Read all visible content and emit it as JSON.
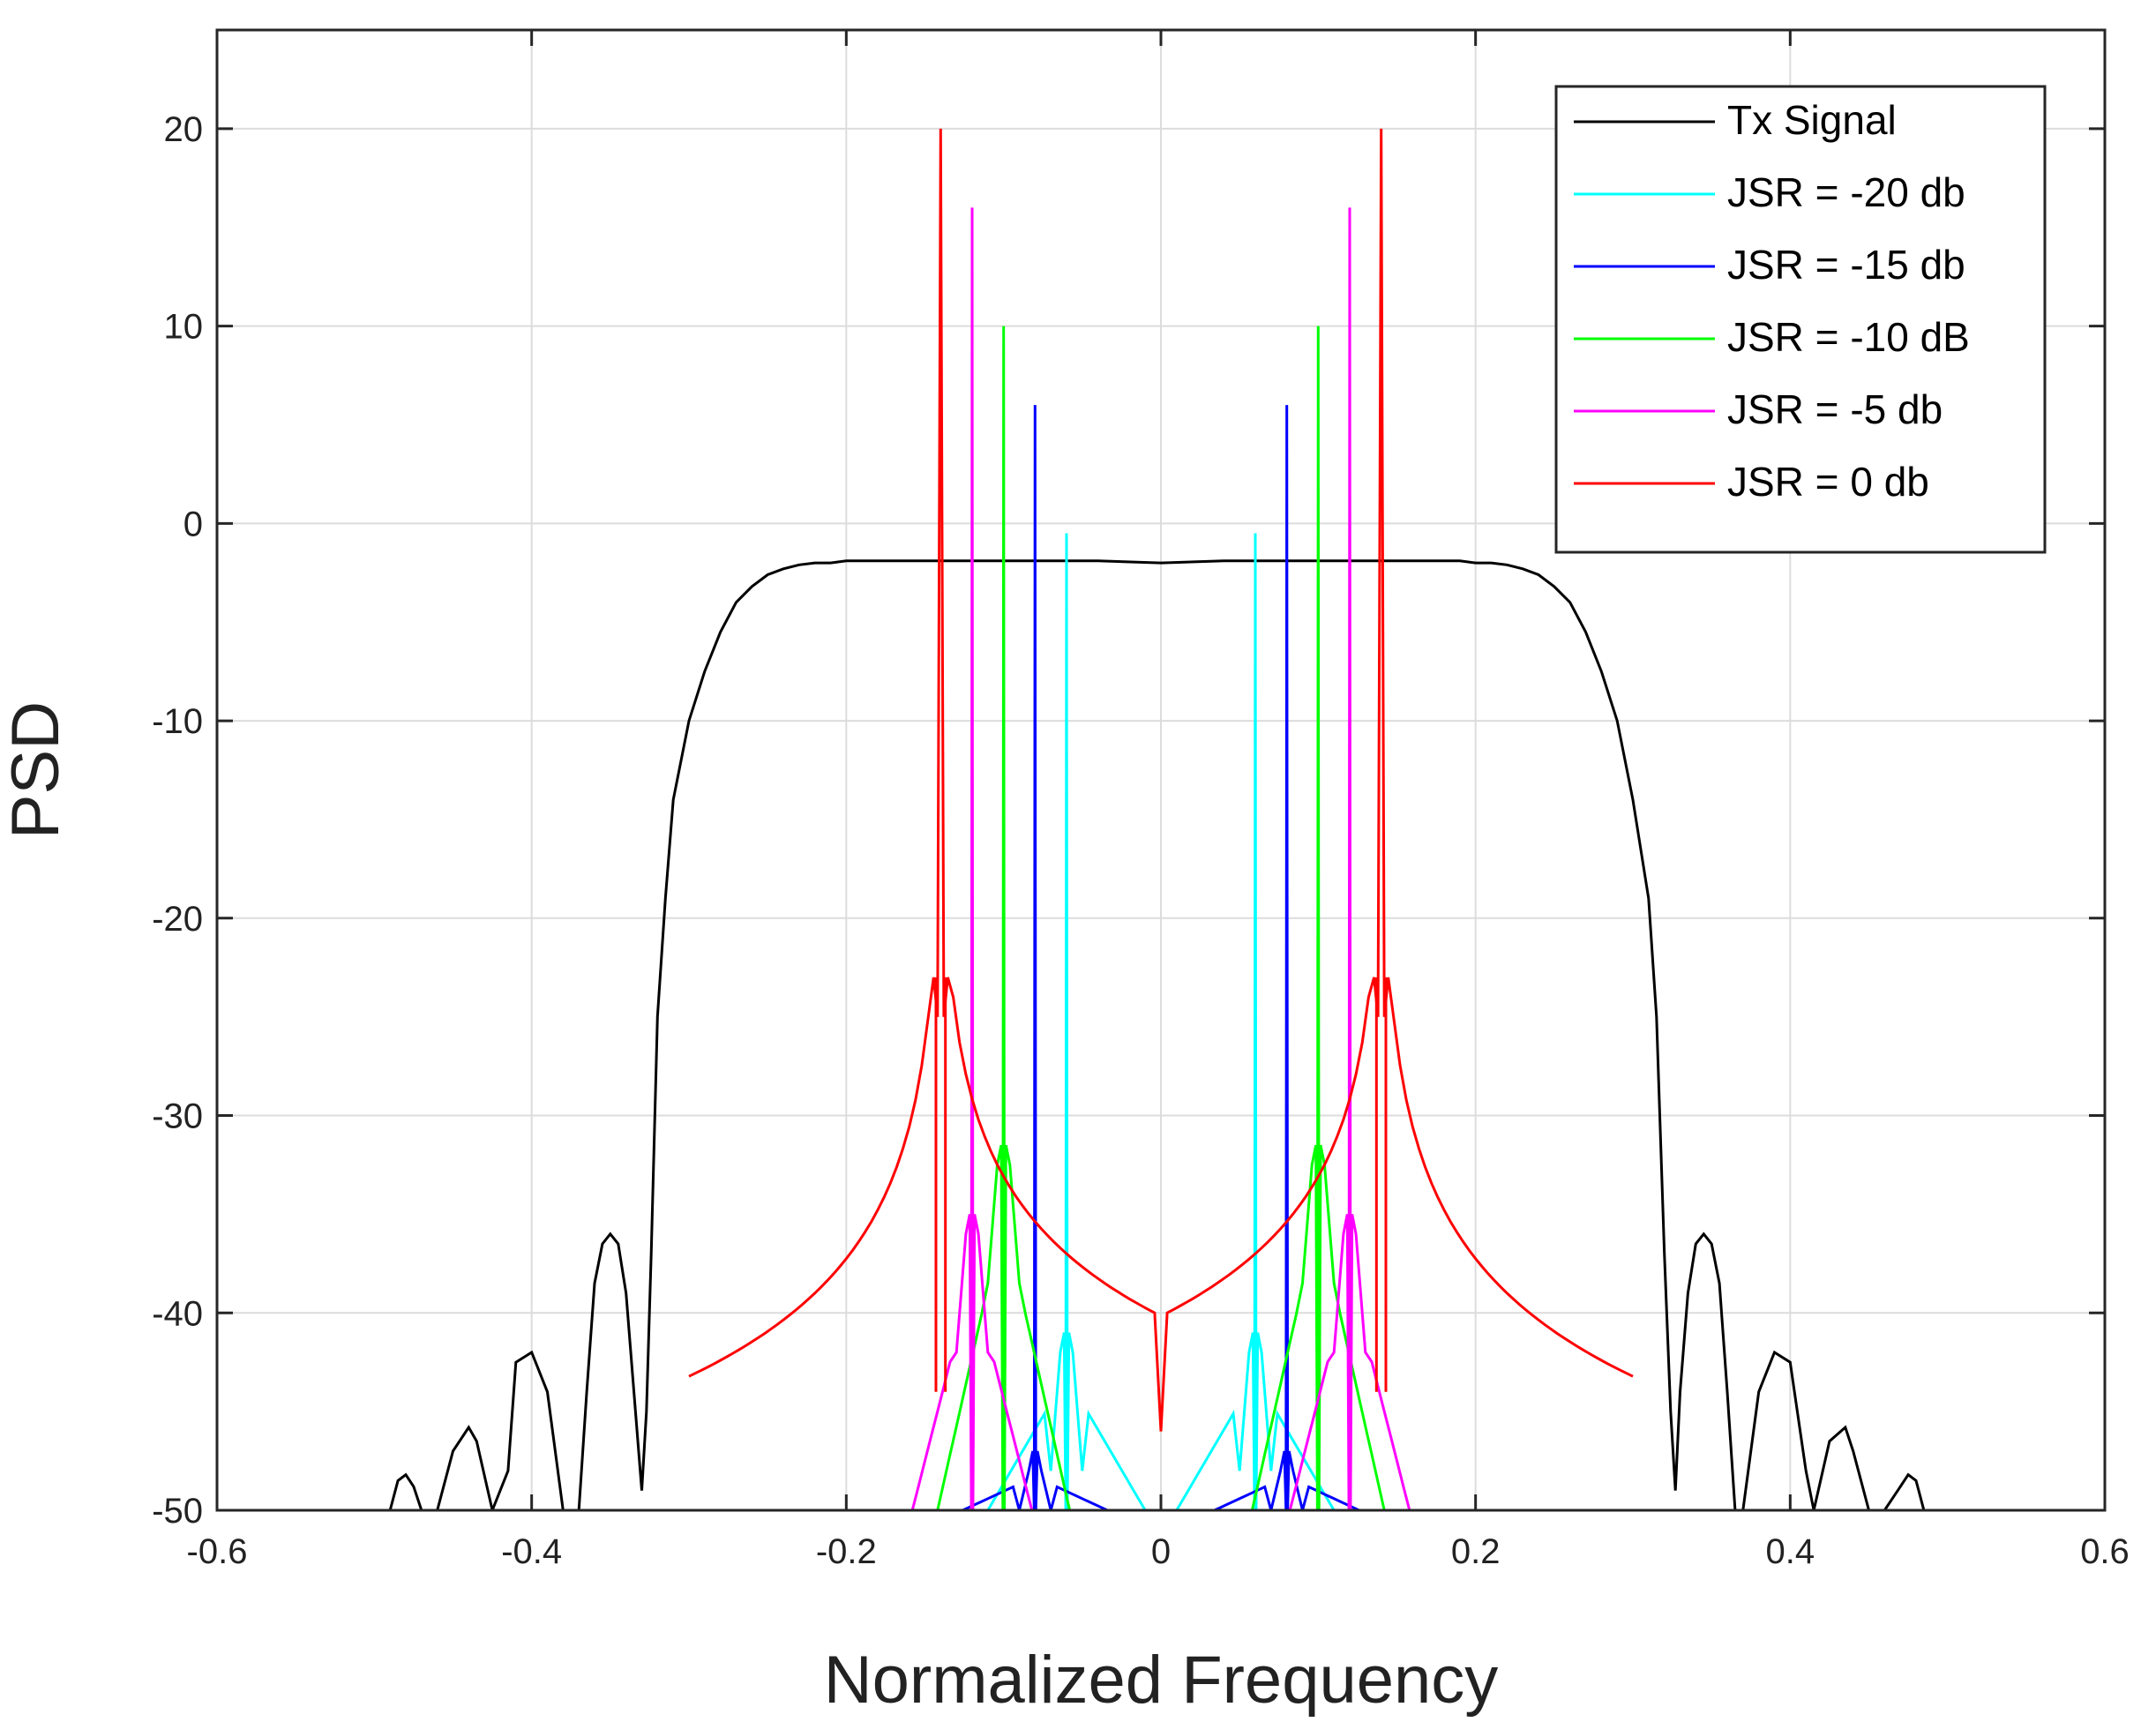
{
  "chart_data": {
    "type": "line",
    "title": "",
    "xlabel": "Normalized Frequency",
    "ylabel": "PSD",
    "xlim": [
      -0.6,
      0.6
    ],
    "ylim": [
      -50,
      25
    ],
    "xticks": [
      -0.6,
      -0.4,
      -0.2,
      0,
      0.2,
      0.4,
      0.6
    ],
    "xtick_labels": [
      "-0.6",
      "-0.4",
      "-0.2",
      "0",
      "0.2",
      "0.4",
      "0.6"
    ],
    "yticks": [
      -50,
      -40,
      -30,
      -20,
      -10,
      0,
      10,
      20
    ],
    "ytick_labels": [
      "-50",
      "-40",
      "-30",
      "-20",
      "-10",
      "0",
      "10",
      "20"
    ],
    "grid": true,
    "legend_position": "top-right",
    "series": [
      {
        "name": "Tx Signal",
        "color": "#000000",
        "x": [
          -0.49,
          -0.485,
          -0.48,
          -0.475,
          -0.47,
          -0.46,
          -0.45,
          -0.44,
          -0.435,
          -0.425,
          -0.415,
          -0.41,
          -0.4,
          -0.39,
          -0.38,
          -0.37,
          -0.365,
          -0.36,
          -0.355,
          -0.35,
          -0.345,
          -0.34,
          -0.335,
          -0.33,
          -0.327,
          -0.324,
          -0.32,
          -0.315,
          -0.31,
          -0.3,
          -0.29,
          -0.28,
          -0.27,
          -0.26,
          -0.25,
          -0.24,
          -0.23,
          -0.22,
          -0.21,
          -0.2,
          -0.19,
          -0.16,
          -0.12,
          -0.08,
          -0.04,
          0,
          0.04,
          0.08,
          0.12,
          0.16,
          0.19,
          0.2,
          0.21,
          0.22,
          0.23,
          0.24,
          0.25,
          0.26,
          0.27,
          0.28,
          0.29,
          0.3,
          0.31,
          0.315,
          0.32,
          0.324,
          0.327,
          0.33,
          0.335,
          0.34,
          0.345,
          0.35,
          0.355,
          0.36,
          0.365,
          0.37,
          0.38,
          0.39,
          0.4,
          0.41,
          0.415,
          0.425,
          0.435,
          0.44,
          0.45,
          0.46,
          0.47,
          0.475,
          0.48,
          0.485,
          0.49
        ],
        "y": [
          -50,
          -48.5,
          -48.2,
          -48.8,
          -50,
          -50,
          -47,
          -45.8,
          -46.5,
          -50,
          -48,
          -42.5,
          -42,
          -44,
          -50,
          -50,
          -44,
          -38.5,
          -36.5,
          -36,
          -36.5,
          -39,
          -44,
          -49,
          -45,
          -37,
          -25,
          -19,
          -14,
          -10,
          -7.5,
          -5.5,
          -4,
          -3.2,
          -2.6,
          -2.3,
          -2.1,
          -2.0,
          -2.0,
          -1.9,
          -1.9,
          -1.9,
          -1.9,
          -1.9,
          -1.9,
          -2.0,
          -1.9,
          -1.9,
          -1.9,
          -1.9,
          -1.9,
          -2.0,
          -2.0,
          -2.1,
          -2.3,
          -2.6,
          -3.2,
          -4,
          -5.5,
          -7.5,
          -10,
          -14,
          -19,
          -25,
          -37,
          -45,
          -49,
          -44,
          -39,
          -36.5,
          -36,
          -36.5,
          -38.5,
          -44,
          -50,
          -50,
          -44,
          -42,
          -42.5,
          -48,
          -50,
          -46.5,
          -45.8,
          -47,
          -50,
          -50,
          -48.8,
          -48.2,
          -48.5,
          -50,
          -50
        ]
      },
      {
        "name": "JSR = -20 db",
        "color": "#00ffff",
        "peak_frequencies": [
          -0.06,
          0.06
        ],
        "peak_value": -0.5,
        "floor_value": -50,
        "sidelobe_value": -42
      },
      {
        "name": "JSR = -15 db",
        "color": "#0000ff",
        "peak_frequencies": [
          -0.08,
          0.08
        ],
        "peak_value": 6,
        "floor_value": -50,
        "sidelobe_value": -48
      },
      {
        "name": "JSR = -10 dB",
        "color": "#00ff00",
        "peak_frequencies": [
          -0.1,
          0.1
        ],
        "peak_value": 10,
        "floor_value": -50,
        "sidelobe_value": -32.5
      },
      {
        "name": "JSR = -5 db",
        "color": "#ff00ff",
        "peak_frequencies": [
          -0.12,
          0.12
        ],
        "peak_value": 16,
        "floor_value": -50,
        "sidelobe_value": -36
      },
      {
        "name": "JSR = 0 db",
        "color": "#ff0000",
        "peak_frequencies": [
          -0.14,
          0.14
        ],
        "peak_value": 20,
        "floor_value": -50,
        "sidelobe_value": -23,
        "center_value": -46.5
      }
    ]
  }
}
